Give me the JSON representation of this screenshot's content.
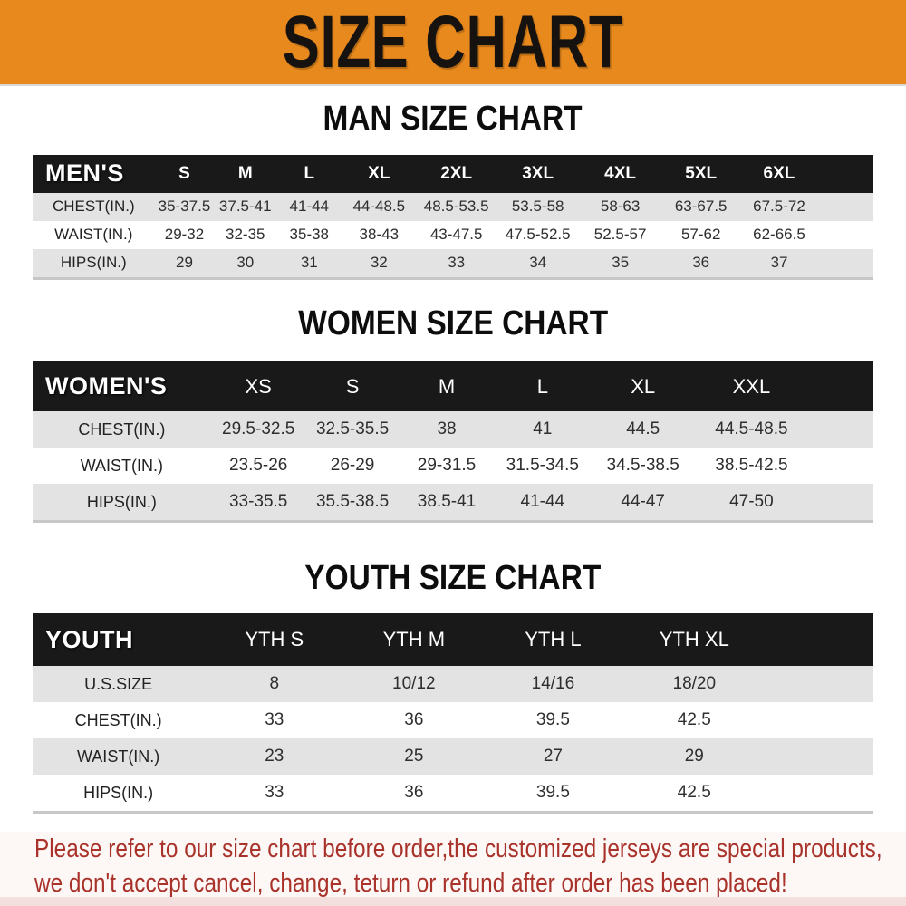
{
  "banner": {
    "title": "SIZE CHART"
  },
  "colors": {
    "banner_orange": "#E8891E",
    "header_black": "#191919",
    "row_gray": "#E3E3E3",
    "footer_red": "#A9332B"
  },
  "sections": [
    {
      "heading": "MAN SIZE CHART",
      "table": {
        "header_label": "MEN'S",
        "sizes": [
          "S",
          "M",
          "L",
          "XL",
          "2XL",
          "3XL",
          "4XL",
          "5XL",
          "6XL"
        ],
        "rows": [
          {
            "label": "CHEST(IN.)",
            "values": [
              "35-37.5",
              "37.5-41",
              "41-44",
              "44-48.5",
              "48.5-53.5",
              "53.5-58",
              "58-63",
              "63-67.5",
              "67.5-72"
            ]
          },
          {
            "label": "WAIST(IN.)",
            "values": [
              "29-32",
              "32-35",
              "35-38",
              "38-43",
              "43-47.5",
              "47.5-52.5",
              "52.5-57",
              "57-62",
              "62-66.5"
            ]
          },
          {
            "label": "HIPS(IN.)",
            "values": [
              "29",
              "30",
              "31",
              "32",
              "33",
              "34",
              "35",
              "36",
              "37"
            ]
          }
        ]
      }
    },
    {
      "heading": "WOMEN SIZE CHART",
      "table": {
        "header_label": "WOMEN'S",
        "sizes": [
          "XS",
          "S",
          "M",
          "L",
          "XL",
          "XXL"
        ],
        "rows": [
          {
            "label": "CHEST(IN.)",
            "values": [
              "29.5-32.5",
              "32.5-35.5",
              "38",
              "41",
              "44.5",
              "44.5-48.5"
            ]
          },
          {
            "label": "WAIST(IN.)",
            "values": [
              "23.5-26",
              "26-29",
              "29-31.5",
              "31.5-34.5",
              "34.5-38.5",
              "38.5-42.5"
            ]
          },
          {
            "label": "HIPS(IN.)",
            "values": [
              "33-35.5",
              "35.5-38.5",
              "38.5-41",
              "41-44",
              "44-47",
              "47-50"
            ]
          }
        ]
      }
    },
    {
      "heading": "YOUTH SIZE CHART",
      "table": {
        "header_label": "YOUTH",
        "sizes": [
          "YTH S",
          "YTH M",
          "YTH L",
          "YTH XL"
        ],
        "rows": [
          {
            "label": "U.S.SIZE",
            "values": [
              "8",
              "10/12",
              "14/16",
              "18/20"
            ]
          },
          {
            "label": "CHEST(IN.)",
            "values": [
              "33",
              "36",
              "39.5",
              "42.5"
            ]
          },
          {
            "label": "WAIST(IN.)",
            "values": [
              "23",
              "25",
              "27",
              "29"
            ]
          },
          {
            "label": "HIPS(IN.)",
            "values": [
              "33",
              "36",
              "39.5",
              "42.5"
            ]
          }
        ]
      }
    }
  ],
  "footer": {
    "lines": [
      "Please refer to our size chart before order,the customized jerseys are special products,",
      "we don't accept cancel, change, teturn or refund after order has been placed!"
    ]
  }
}
